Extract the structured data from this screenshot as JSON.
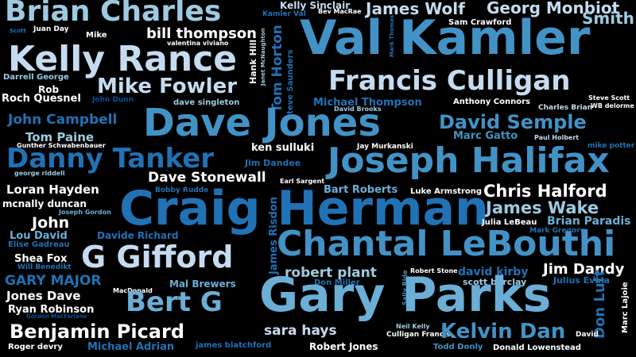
{
  "palette": {
    "background": "#000000",
    "shades": [
      "#ffffff",
      "#c6dbef",
      "#9ecae1",
      "#6baed6",
      "#4292c6",
      "#2171b5",
      "#08519c"
    ]
  },
  "words": [
    {
      "text": "Brian Charles",
      "color": "#9ecae1"
    },
    {
      "text": "Kelly Sinclair",
      "color": "#c6dbef"
    },
    {
      "text": "Bev MacRae",
      "color": "#ffffff"
    },
    {
      "text": "James Wolf",
      "color": "#c6dbef"
    },
    {
      "text": "Georg Monbiot",
      "color": "#c6dbef"
    },
    {
      "text": "Smith",
      "color": "#9ecae1"
    },
    {
      "text": "Juan Day",
      "color": "#ffffff"
    },
    {
      "text": "Scott",
      "color": "#2171b5"
    },
    {
      "text": "Kamler Val",
      "color": "#2171b5"
    },
    {
      "text": "Sam Crawford",
      "color": "#ffffff"
    },
    {
      "text": "Mike",
      "color": "#ffffff"
    },
    {
      "text": "bill thompson",
      "color": "#ffffff"
    },
    {
      "text": "valentina viviano",
      "color": "#ffffff"
    },
    {
      "text": "Val Kamler",
      "color": "#4292c6"
    },
    {
      "text": "Kelly Rance",
      "color": "#c6dbef"
    },
    {
      "text": "Hank Hill",
      "color": "#ffffff"
    },
    {
      "text": "Janet McNaughton",
      "color": "#9ecae1"
    },
    {
      "text": "Tom Horton",
      "color": "#2171b5"
    },
    {
      "text": "Mark Thomas",
      "color": "#2171b5"
    },
    {
      "text": "Francis Culligan",
      "color": "#c6dbef"
    },
    {
      "text": "Darrell George",
      "color": "#9ecae1"
    },
    {
      "text": "Rob",
      "color": "#ffffff"
    },
    {
      "text": "Mike Fowler",
      "color": "#c6dbef"
    },
    {
      "text": "Steve Saunders",
      "color": "#2171b5"
    },
    {
      "text": "Steve Scott",
      "color": "#ffffff"
    },
    {
      "text": "Roch Quesnel",
      "color": "#ffffff"
    },
    {
      "text": "John Dunn",
      "color": "#08519c"
    },
    {
      "text": "dave singleton",
      "color": "#9ecae1"
    },
    {
      "text": "Michael Thompson",
      "color": "#2171b5"
    },
    {
      "text": "Anthony Connors",
      "color": "#ffffff"
    },
    {
      "text": "Charles Brian",
      "color": "#c6dbef"
    },
    {
      "text": "WB delorme",
      "color": "#ffffff"
    },
    {
      "text": "David Brooks",
      "color": "#9ecae1"
    },
    {
      "text": "John Campbell",
      "color": "#2171b5"
    },
    {
      "text": "Dave Jones",
      "color": "#4292c6"
    },
    {
      "text": "David Semple",
      "color": "#4292c6"
    },
    {
      "text": "Tom Paine",
      "color": "#9ecae1"
    },
    {
      "text": "Marc Gatto",
      "color": "#4292c6"
    },
    {
      "text": "Paul Holbert",
      "color": "#c6dbef"
    },
    {
      "text": "Gunther Schwabenbauer",
      "color": "#ffffff"
    },
    {
      "text": "ken sulluki",
      "color": "#ffffff"
    },
    {
      "text": "Jay Murkanski",
      "color": "#ffffff"
    },
    {
      "text": "mike potter",
      "color": "#2171b5"
    },
    {
      "text": "Danny Tanker",
      "color": "#2171b5"
    },
    {
      "text": "Jim Dandee",
      "color": "#2171b5"
    },
    {
      "text": "Joseph Halifax",
      "color": "#4292c6"
    },
    {
      "text": "george riddell",
      "color": "#9ecae1"
    },
    {
      "text": "Dave Stonewall",
      "color": "#ffffff"
    },
    {
      "text": "Earl Sargent",
      "color": "#ffffff"
    },
    {
      "text": "Loran Hayden",
      "color": "#ffffff"
    },
    {
      "text": "Bobby Rudde",
      "color": "#2171b5"
    },
    {
      "text": "Bart Roberts",
      "color": "#6baed6"
    },
    {
      "text": "Luke Armstrong",
      "color": "#ffffff"
    },
    {
      "text": "Chris Halford",
      "color": "#ffffff"
    },
    {
      "text": "mcnally duncan",
      "color": "#ffffff"
    },
    {
      "text": "James Risdon",
      "color": "#2171b5"
    },
    {
      "text": "Craig Herman",
      "color": "#2171b5"
    },
    {
      "text": "James Wake",
      "color": "#9ecae1"
    },
    {
      "text": "Joseph Gordon",
      "color": "#6baed6"
    },
    {
      "text": "Julia LeBeau",
      "color": "#ffffff"
    },
    {
      "text": "Brian Paradis",
      "color": "#6baed6"
    },
    {
      "text": "John",
      "color": "#ffffff"
    },
    {
      "text": "Mark Gregory",
      "color": "#2171b5"
    },
    {
      "text": "Lou David",
      "color": "#6baed6"
    },
    {
      "text": "Davide Richard",
      "color": "#2171b5"
    },
    {
      "text": "Elise Gadreau",
      "color": "#2171b5"
    },
    {
      "text": "Chantal LeBouthi",
      "color": "#4292c6"
    },
    {
      "text": "Shea Fox",
      "color": "#ffffff"
    },
    {
      "text": "G Gifford",
      "color": "#c6dbef"
    },
    {
      "text": "Will Benedikt",
      "color": "#2171b5"
    },
    {
      "text": "Robert Stone",
      "color": "#ffffff"
    },
    {
      "text": "robert plant",
      "color": "#9ecae1"
    },
    {
      "text": "david kirby",
      "color": "#2171b5"
    },
    {
      "text": "Jim Dandy",
      "color": "#ffffff"
    },
    {
      "text": "GARY MAJOR",
      "color": "#2171b5"
    },
    {
      "text": "Don Miller",
      "color": "#2171b5"
    },
    {
      "text": "scott barclay",
      "color": "#9ecae1"
    },
    {
      "text": "Julius Evola",
      "color": "#2171b5"
    },
    {
      "text": "MacDonald",
      "color": "#ffffff"
    },
    {
      "text": "Mal Brewers",
      "color": "#6baed6"
    },
    {
      "text": "Jones Dave",
      "color": "#ffffff"
    },
    {
      "text": "Sally Ride",
      "color": "#4292c6"
    },
    {
      "text": "Bert G",
      "color": "#6baed6"
    },
    {
      "text": "Gary Parks",
      "color": "#6baed6"
    },
    {
      "text": "Ryan Robinson",
      "color": "#ffffff"
    },
    {
      "text": "Gordon MacFarlane",
      "color": "#08519c"
    },
    {
      "text": "Don Luft",
      "color": "#2171b5"
    },
    {
      "text": "Marc Lajoie",
      "color": "#ffffff"
    },
    {
      "text": "Benjamin Picard",
      "color": "#ffffff"
    },
    {
      "text": "sara hays",
      "color": "#c6dbef"
    },
    {
      "text": "Neil Kelly",
      "color": "#9ecae1"
    },
    {
      "text": "Culligan Francis",
      "color": "#ffffff"
    },
    {
      "text": "Kelvin Dan",
      "color": "#4292c6"
    },
    {
      "text": "David",
      "color": "#ffffff"
    },
    {
      "text": "Roger devry",
      "color": "#ffffff"
    },
    {
      "text": "Michael Adrian",
      "color": "#2171b5"
    },
    {
      "text": "james blatchford",
      "color": "#2171b5"
    },
    {
      "text": "Robert Jones",
      "color": "#ffffff"
    },
    {
      "text": "Todd Donly",
      "color": "#4292c6"
    },
    {
      "text": "Donald Lowenstead",
      "color": "#ffffff"
    }
  ]
}
